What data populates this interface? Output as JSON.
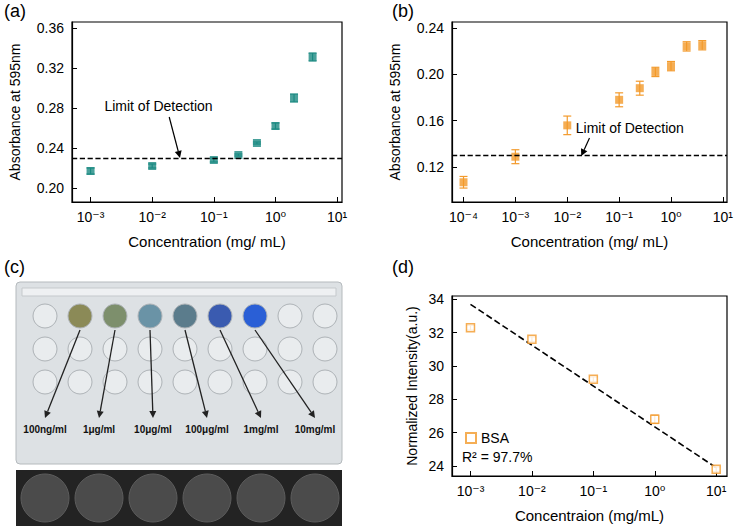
{
  "chart_data": [
    {
      "type": "scatter",
      "title": "(a)",
      "x_label": "Concentration (mg/ mL)",
      "y_label": "Absorbance at 595nm",
      "log": "x",
      "grid": false,
      "xlim": [
        0.0005,
        12
      ],
      "xticks": [
        {
          "value": 0.001,
          "label": "10⁻³"
        },
        {
          "value": 0.01,
          "label": "10⁻²"
        },
        {
          "value": 0.1,
          "label": "10⁻¹"
        },
        {
          "value": 1,
          "label": "10⁰"
        },
        {
          "value": 10,
          "label": "10¹"
        }
      ],
      "ylim": [
        0.186,
        0.366
      ],
      "yticks": [
        {
          "value": 0.2,
          "label": "0.20"
        },
        0.24,
        0.28,
        0.32,
        0.36
      ],
      "series": [
        {
          "color": "#1b8a82",
          "marker": "square",
          "x": [
            0.001,
            0.01,
            0.1,
            0.25,
            0.5,
            1,
            2,
            4
          ],
          "values": [
            0.217,
            0.222,
            0.228,
            0.233,
            0.245,
            0.262,
            0.29,
            0.331
          ],
          "errors": [
            0.003,
            0.002,
            0.002,
            0.001,
            0.001,
            0.003,
            0.004,
            0.004
          ]
        }
      ],
      "annotations": [
        {
          "text": "Limit of Detection",
          "y": 0.227,
          "line_style": "dashed"
        }
      ]
    },
    {
      "type": "scatter",
      "title": "(b)",
      "x_label": "Concentration (mg/ mL)",
      "y_label": "Absorbance at 595nm",
      "log": "x",
      "grid": false,
      "xlim": [
        6e-05,
        12
      ],
      "xticks": [
        {
          "value": 0.0001,
          "label": "10⁻⁴"
        },
        {
          "value": 0.001,
          "label": "10⁻³"
        },
        {
          "value": 0.01,
          "label": "10⁻²"
        },
        {
          "value": 0.1,
          "label": "10⁻¹"
        },
        {
          "value": 1,
          "label": "10⁰"
        },
        {
          "value": 10,
          "label": "10¹"
        }
      ],
      "ylim": [
        0.09,
        0.245
      ],
      "yticks": [
        0.12,
        0.16,
        {
          "value": 0.2,
          "label": "0.20"
        },
        0.24
      ],
      "series": [
        {
          "color": "#f39a2b",
          "marker": "square",
          "x": [
            0.0001,
            0.001,
            0.01,
            0.1,
            0.25,
            0.5,
            1,
            2,
            4
          ],
          "values": [
            0.107,
            0.129,
            0.156,
            0.178,
            0.188,
            0.202,
            0.207,
            0.224,
            0.225
          ],
          "errors": [
            0.005,
            0.006,
            0.008,
            0.006,
            0.006,
            0.004,
            0.004,
            0.004,
            0.004
          ]
        }
      ],
      "annotations": [
        {
          "text": "Limit of Detection",
          "y": 0.127,
          "line_style": "dashed"
        }
      ]
    },
    {
      "type": "scatter",
      "title": "(d)",
      "x_label": "Concentraion (mg/mL)",
      "y_label": "Normalized Intensity(a.u.)",
      "log": "x",
      "grid": false,
      "legend": "lower left",
      "xlim": [
        0.0005,
        15
      ],
      "xticks": [
        {
          "value": 0.001,
          "label": "10⁻³"
        },
        {
          "value": 0.01,
          "label": "10⁻²"
        },
        {
          "value": 0.1,
          "label": "10⁻¹"
        },
        {
          "value": 1,
          "label": "10⁰"
        },
        {
          "value": 10,
          "label": "10¹"
        }
      ],
      "ylim": [
        23.4,
        34.2
      ],
      "yticks": [
        24,
        26,
        28,
        30,
        32,
        34
      ],
      "series": [
        {
          "name": "BSA",
          "color": "#f39a2b",
          "marker": "open square",
          "x": [
            0.001,
            0.01,
            0.1,
            1,
            10
          ],
          "values": [
            32.3,
            31.6,
            29.2,
            26.8,
            23.8
          ],
          "errors": [
            0.15,
            0.15,
            0.15,
            0.25,
            0.15
          ]
        },
        {
          "type": "line",
          "color": "#000000",
          "line_style": "dashed",
          "x": [
            0.001,
            10
          ],
          "values": [
            33.7,
            23.9
          ]
        }
      ],
      "annotations": [
        {
          "text": "R² = 97.7%"
        }
      ]
    }
  ],
  "image_panel": {
    "title": "(c)",
    "labels": [
      "100ng/ml",
      "1μg/ml",
      "10μg/ml",
      "100μg/ml",
      "1mg/ml",
      "10mg/ml"
    ],
    "colors": [
      "#8b8a57",
      "#7d8f6c",
      "#6a93a6",
      "#5b7c8c",
      "#3a5bb0",
      "#2a5fd6"
    ]
  }
}
